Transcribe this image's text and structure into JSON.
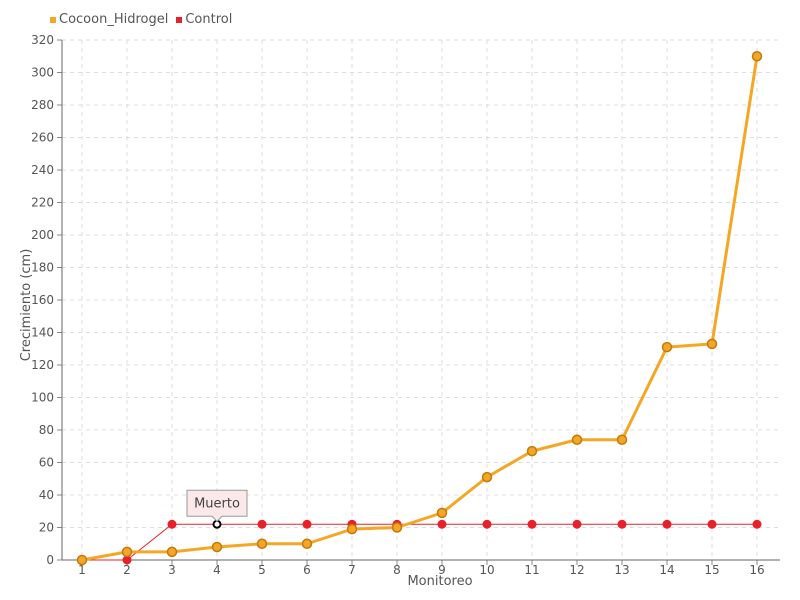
{
  "chart_data": {
    "type": "line",
    "xlabel": "Monitoreo",
    "ylabel": "Crecimiento (cm)",
    "x": [
      1,
      2,
      3,
      4,
      5,
      6,
      7,
      8,
      9,
      10,
      11,
      12,
      13,
      14,
      15,
      16
    ],
    "ylim": [
      0,
      320
    ],
    "yticks": [
      0,
      20,
      40,
      60,
      80,
      100,
      120,
      140,
      160,
      180,
      200,
      220,
      240,
      260,
      280,
      300,
      320
    ],
    "grid": true,
    "legend_position": "top-left",
    "series": [
      {
        "name": "Cocoon_Hidrogel",
        "color": "#F5A623",
        "values": [
          0,
          5,
          5,
          8,
          10,
          10,
          19,
          20,
          29,
          51,
          67,
          74,
          74,
          131,
          133,
          310
        ]
      },
      {
        "name": "Control",
        "color": "#E8202A",
        "values": [
          0,
          0,
          22,
          22,
          22,
          22,
          22,
          22,
          22,
          22,
          22,
          22,
          22,
          22,
          22,
          22
        ]
      }
    ],
    "annotation": {
      "text": "Muerto",
      "series": "Control",
      "x": 4
    }
  }
}
